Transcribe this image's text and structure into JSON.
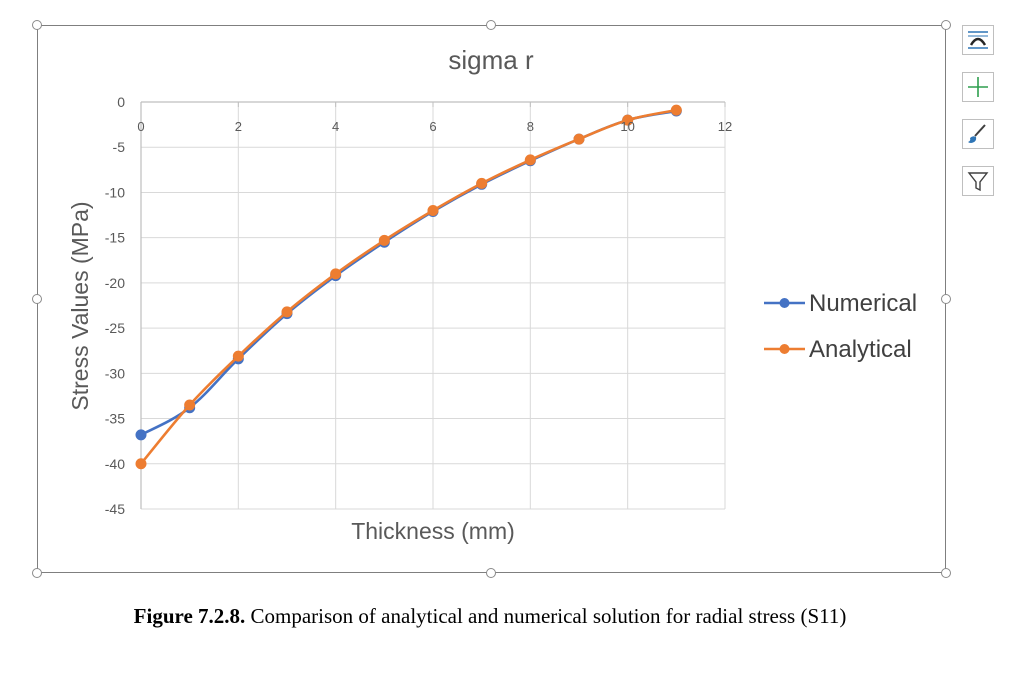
{
  "chart_data": {
    "type": "line",
    "title": "sigma r",
    "xlabel": "Thickness (mm)",
    "ylabel": "Stress Values (MPa)",
    "xlim": [
      0,
      12
    ],
    "ylim": [
      -45,
      0
    ],
    "xticks": [
      "0",
      "2",
      "4",
      "6",
      "8",
      "10",
      "12"
    ],
    "yticks": [
      "0",
      "-5",
      "-10",
      "-15",
      "-20",
      "-25",
      "-30",
      "-35",
      "-40",
      "-45"
    ],
    "grid": true,
    "legend_position": "right",
    "series": [
      {
        "name": "Numerical",
        "color": "#4472c4",
        "x": [
          0,
          1,
          2,
          3,
          4,
          5,
          6,
          7,
          8,
          9,
          10,
          11
        ],
        "y": [
          -36.8,
          -33.8,
          -28.4,
          -23.4,
          -19.2,
          -15.5,
          -12.1,
          -9.1,
          -6.5,
          -4.1,
          -2.0,
          -1.0
        ]
      },
      {
        "name": "Analytical",
        "color": "#ed7d31",
        "x": [
          0,
          1,
          2,
          3,
          4,
          5,
          6,
          7,
          8,
          9,
          10,
          11
        ],
        "y": [
          -40.0,
          -33.5,
          -28.1,
          -23.2,
          -19.0,
          -15.3,
          -12.0,
          -9.0,
          -6.4,
          -4.1,
          -2.0,
          -0.9
        ]
      }
    ]
  },
  "caption": {
    "label": "Figure 7.2.8.",
    "text": " Comparison of analytical and numerical solution for radial stress (S11)"
  },
  "side_buttons": {
    "layout_icon": "chart-elements-layout-icon",
    "plus_icon": "chart-elements-plus-icon",
    "brush_icon": "chart-styles-brush-icon",
    "filter_icon": "chart-filters-icon"
  }
}
